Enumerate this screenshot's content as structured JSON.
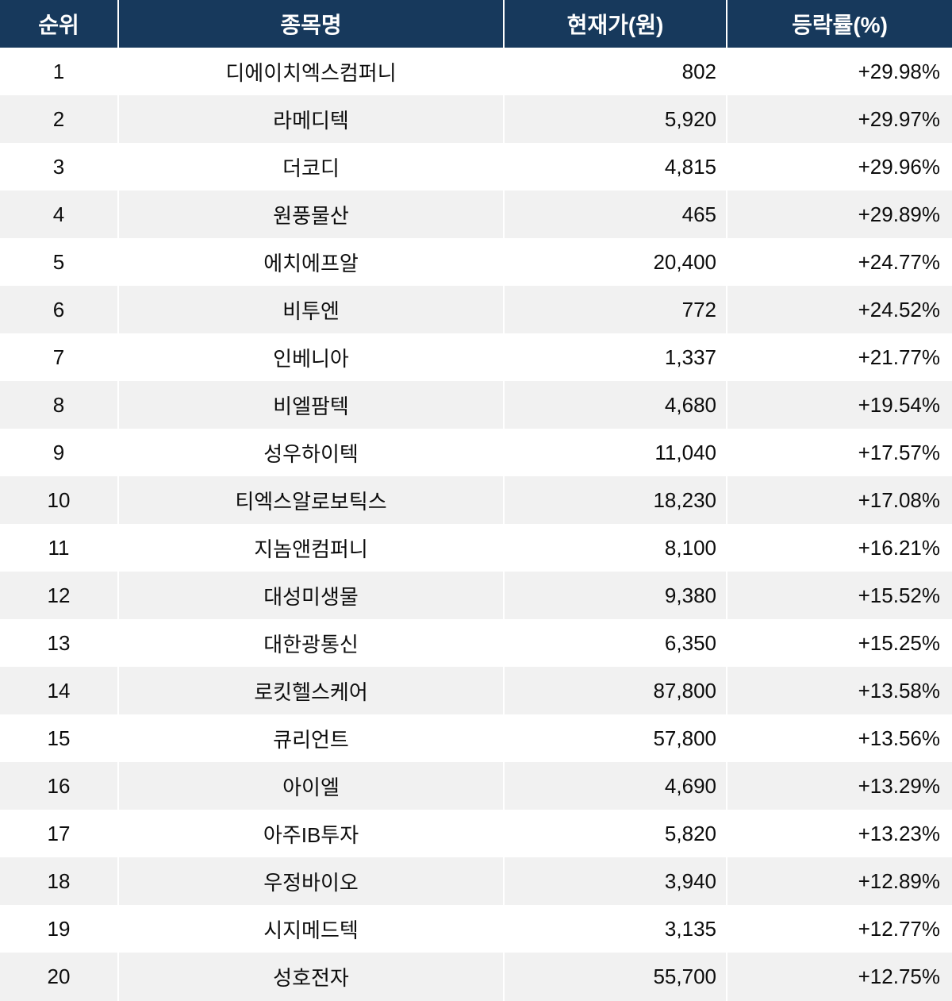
{
  "chart_data": {
    "type": "table",
    "title": "",
    "columns": [
      "순위",
      "종목명",
      "현재가(원)",
      "등락률(%)"
    ],
    "rows": [
      [
        "1",
        "디에이치엑스컴퍼니",
        "802",
        "+29.98%"
      ],
      [
        "2",
        "라메디텍",
        "5,920",
        "+29.97%"
      ],
      [
        "3",
        "더코디",
        "4,815",
        "+29.96%"
      ],
      [
        "4",
        "원풍물산",
        "465",
        "+29.89%"
      ],
      [
        "5",
        "에치에프알",
        "20,400",
        "+24.77%"
      ],
      [
        "6",
        "비투엔",
        "772",
        "+24.52%"
      ],
      [
        "7",
        "인베니아",
        "1,337",
        "+21.77%"
      ],
      [
        "8",
        "비엘팜텍",
        "4,680",
        "+19.54%"
      ],
      [
        "9",
        "성우하이텍",
        "11,040",
        "+17.57%"
      ],
      [
        "10",
        "티엑스알로보틱스",
        "18,230",
        "+17.08%"
      ],
      [
        "11",
        "지놈앤컴퍼니",
        "8,100",
        "+16.21%"
      ],
      [
        "12",
        "대성미생물",
        "9,380",
        "+15.52%"
      ],
      [
        "13",
        "대한광통신",
        "6,350",
        "+15.25%"
      ],
      [
        "14",
        "로킷헬스케어",
        "87,800",
        "+13.58%"
      ],
      [
        "15",
        "큐리언트",
        "57,800",
        "+13.56%"
      ],
      [
        "16",
        "아이엘",
        "4,690",
        "+13.29%"
      ],
      [
        "17",
        "아주IB투자",
        "5,820",
        "+13.23%"
      ],
      [
        "18",
        "우정바이오",
        "3,940",
        "+12.89%"
      ],
      [
        "19",
        "시지메드텍",
        "3,135",
        "+12.77%"
      ],
      [
        "20",
        "성호전자",
        "55,700",
        "+12.75%"
      ]
    ],
    "layout": {
      "grid": "off",
      "row_striping": "alternating white and light gray",
      "column_alignment": [
        "center",
        "center",
        "right",
        "right"
      ]
    }
  },
  "colors": {
    "header_bg": "#17395c",
    "header_text": "#ffffff",
    "row_even_bg": "#ffffff",
    "row_odd_bg": "#f1f1f1",
    "body_text": "#0d0d0d",
    "divider": "#ffffff"
  }
}
